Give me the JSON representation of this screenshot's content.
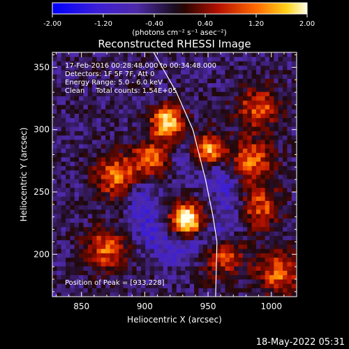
{
  "chart_data": {
    "type": "heatmap",
    "title": "Reconstructed RHESSI Image",
    "xlabel": "Heliocentric X (arcsec)",
    "ylabel": "Heliocentric Y (arcsec)",
    "xlim": [
      827,
      1020
    ],
    "ylim": [
      166,
      362
    ],
    "x_ticks": [
      850,
      900,
      950,
      1000
    ],
    "y_ticks": [
      200,
      250,
      300,
      350
    ],
    "colorbar": {
      "range": [
        -2.0,
        2.0
      ],
      "tick_labels": [
        "-2.00",
        "-1.20",
        "-0.40",
        "0.40",
        "1.20",
        "2.00"
      ],
      "units_label": "(photons cm⁻² s⁻¹ asec⁻²)"
    },
    "annotations": [
      "17-Feb-2016 00:28:48.000 to 00:34:48.000",
      "Detectors: 1F 5F 7F, Att 0",
      "Energy Range: 5.0 - 6.0 keV",
      "Clean     Total counts: 1.54E+05",
      "Position of Peak = [933,228]"
    ],
    "sources": [
      {
        "x": 933,
        "y": 228,
        "value": 2.0
      },
      {
        "x": 918,
        "y": 306,
        "value": 1.6
      },
      {
        "x": 950,
        "y": 283,
        "value": 1.55
      },
      {
        "x": 907,
        "y": 275,
        "value": 1.3
      },
      {
        "x": 877,
        "y": 263,
        "value": 0.9
      },
      {
        "x": 990,
        "y": 318,
        "value": 0.7
      },
      {
        "x": 985,
        "y": 275,
        "value": 0.8
      },
      {
        "x": 990,
        "y": 238,
        "value": 0.7
      },
      {
        "x": 960,
        "y": 200,
        "value": 0.8
      },
      {
        "x": 870,
        "y": 205,
        "value": 0.8
      },
      {
        "x": 1005,
        "y": 185,
        "value": 0.8
      }
    ],
    "limb_curve": [
      [
        907,
        362
      ],
      [
        925,
        330
      ],
      [
        938,
        300
      ],
      [
        948,
        260
      ],
      [
        954,
        230
      ],
      [
        957,
        210
      ],
      [
        956,
        166
      ]
    ],
    "timestamp": "18-May-2022 05:31"
  }
}
